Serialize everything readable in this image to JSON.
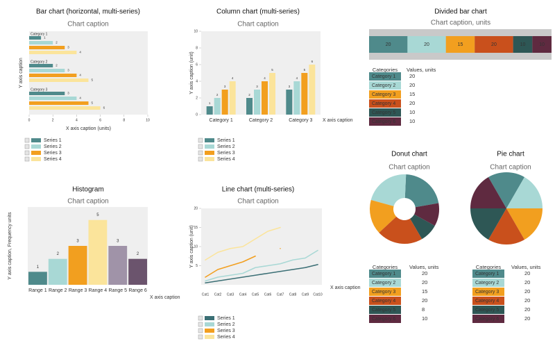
{
  "chart_data": [
    {
      "type": "bar",
      "orientation": "horizontal",
      "title": "Bar chart (horizontal, multi-series)",
      "subtitle": "Chart caption",
      "x_label": "X axis caption (units)",
      "y_label": "Y axis caption",
      "categories": [
        "Category 1",
        "Category 2",
        "Category 3"
      ],
      "series": [
        {
          "name": "Series 1",
          "color": "#4f8a8b",
          "values": [
            1,
            2,
            3
          ]
        },
        {
          "name": "Series 2",
          "color": "#a8d8d5",
          "values": [
            2,
            3,
            4
          ]
        },
        {
          "name": "Series 3",
          "color": "#f29f1f",
          "values": [
            3,
            4,
            5
          ]
        },
        {
          "name": "Series 4",
          "color": "#fbe49b",
          "values": [
            4,
            5,
            6
          ]
        }
      ],
      "xlim": [
        0,
        10
      ],
      "xticks": [
        0,
        2,
        4,
        6,
        8,
        10
      ]
    },
    {
      "type": "bar",
      "orientation": "vertical",
      "title": "Column chart (multi-series)",
      "subtitle": "Chart caption",
      "x_label": "X axis caption",
      "y_label": "Y axis caption (unit)",
      "categories": [
        "Category 1",
        "Category 2",
        "Category 3"
      ],
      "series": [
        {
          "name": "Series 1",
          "color": "#4f8a8b",
          "values": [
            1,
            2,
            3
          ]
        },
        {
          "name": "Series 2",
          "color": "#a8d8d5",
          "values": [
            2,
            3,
            4
          ]
        },
        {
          "name": "Series 3",
          "color": "#f29f1f",
          "values": [
            3,
            4,
            5
          ]
        },
        {
          "name": "Series 4",
          "color": "#fbe49b",
          "values": [
            4,
            5,
            6
          ]
        }
      ],
      "ylim": [
        0,
        10
      ],
      "yticks": [
        0,
        2,
        4,
        6,
        8,
        10
      ]
    },
    {
      "type": "bar",
      "orientation": "horizontal",
      "stacked": true,
      "title": "Divided bar chart",
      "subtitle": "Chart caption, units",
      "categories": [
        "Category 1",
        "Category 2",
        "Category 3",
        "Category 4",
        "Category 5",
        "Category 6"
      ],
      "values": [
        20,
        20,
        15,
        20,
        10,
        10
      ],
      "colors": [
        "#4f8a8b",
        "#a8d8d5",
        "#f29f1f",
        "#c9501c",
        "#2e5755",
        "#5f2a40"
      ],
      "table_headers": [
        "Categories",
        "Values, units"
      ]
    },
    {
      "type": "bar",
      "orientation": "vertical",
      "title": "Histogram",
      "subtitle": "Chart caption",
      "x_label": "X axis caption",
      "y_label": "Y axis caption, Frequency units",
      "categories": [
        "Range 1",
        "Range 2",
        "Range 3",
        "Range 4",
        "Range 5",
        "Range 6"
      ],
      "values": [
        1,
        2,
        3,
        5,
        3,
        2
      ],
      "colors": [
        "#4f8a8b",
        "#a8d8d5",
        "#f29f1f",
        "#fbe49b",
        "#a093a8",
        "#6b546d"
      ],
      "ylim": [
        0,
        6
      ]
    },
    {
      "type": "line",
      "title": "Line chart (multi-series)",
      "subtitle": "Chart caption",
      "x_label": "X axis caption",
      "y_label": "Y axis caption (unit)",
      "categories": [
        "Cat1",
        "Cat2",
        "Cat3",
        "Cat4",
        "Cat5",
        "Cat6",
        "Cat7",
        "Cat8",
        "Cat9",
        "Cat10"
      ],
      "series": [
        {
          "name": "Series 1",
          "color": "#3b6f75",
          "values": [
            0.5,
            1,
            1.5,
            2,
            2.5,
            3,
            3.5,
            4,
            4.5,
            5.3
          ]
        },
        {
          "name": "Series 2",
          "color": "#a8d8d5",
          "values": [
            1,
            2,
            2.5,
            3,
            4.5,
            5,
            5.5,
            6.5,
            7,
            9
          ]
        },
        {
          "name": "Series 3",
          "color": "#f29f1f",
          "values": [
            2,
            4,
            5,
            6,
            7.5,
            null,
            9.5,
            null,
            null,
            null
          ]
        },
        {
          "name": "Series 4",
          "color": "#fbe49b",
          "values": [
            6.5,
            8.5,
            9.5,
            10,
            12,
            14,
            15,
            null,
            null,
            null
          ]
        }
      ],
      "ylim": [
        0,
        20
      ],
      "yticks": [
        5,
        10,
        15,
        20
      ]
    },
    {
      "type": "pie",
      "hole": true,
      "title": "Donut chart",
      "subtitle": "Chart caption",
      "categories": [
        "Category 1",
        "Category 2",
        "Category 3",
        "Category 4",
        "Category 5",
        "Category 6"
      ],
      "values": [
        20,
        20,
        15,
        20,
        8,
        10
      ],
      "colors": [
        "#4f8a8b",
        "#a8d8d5",
        "#f29f1f",
        "#c9501c",
        "#2e5755",
        "#5f2a40"
      ],
      "table_headers": [
        "Categories",
        "Values, units"
      ]
    },
    {
      "type": "pie",
      "title": "Pie chart",
      "subtitle": "Chart caption",
      "categories": [
        "Category 1",
        "Category 2",
        "Category 3",
        "Category 4",
        "Category 5",
        "Category 6"
      ],
      "values": [
        20,
        20,
        20,
        20,
        20,
        20
      ],
      "colors": [
        "#4f8a8b",
        "#a8d8d5",
        "#f29f1f",
        "#c9501c",
        "#2e5755",
        "#5f2a40"
      ],
      "table_headers": [
        "Categories",
        "Values, units"
      ]
    }
  ]
}
